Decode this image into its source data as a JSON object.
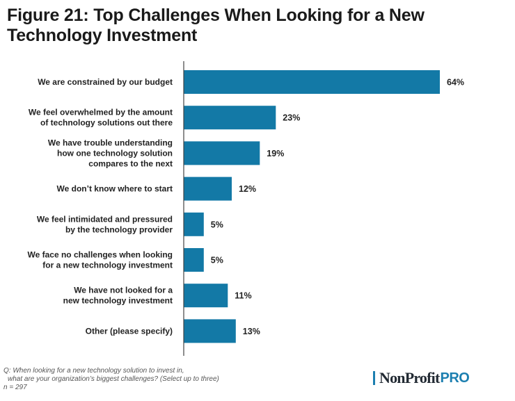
{
  "colors": {
    "bar": "#1379a6",
    "axis": "#444444",
    "text": "#222222",
    "brand_accent": "#1c7fb0"
  },
  "chart_data": {
    "type": "bar",
    "orientation": "horizontal",
    "title": "Figure 21: Top Challenges When Looking for a New Technology Investment",
    "categories": [
      [
        "We are constrained by our budget"
      ],
      [
        "We feel overwhelmed by the amount",
        "of technology solutions out there"
      ],
      [
        "We have trouble understanding",
        "how one technology solution",
        "compares to the next"
      ],
      [
        "We don’t know where to start"
      ],
      [
        "We feel intimidated and pressured",
        "by the technology provider"
      ],
      [
        "We face no challenges when looking",
        "for a new technology investment"
      ],
      [
        "We have not looked for a",
        "new technology investment"
      ],
      [
        "Other (please specify)"
      ]
    ],
    "values": [
      64,
      23,
      19,
      12,
      5,
      5,
      11,
      13
    ],
    "value_labels": [
      "64%",
      "23%",
      "19%",
      "12%",
      "5%",
      "5%",
      "11%",
      "13%"
    ],
    "unit": "%",
    "xlim": [
      0,
      64
    ],
    "grid": false,
    "legend": "none"
  },
  "footnote": {
    "question_line1": "Q: When looking for a new technology solution to invest in,",
    "question_line2": "what are your organization’s biggest challenges? (Select up to three)",
    "sample": "n = 297"
  },
  "logo": {
    "part1": "NonProfit",
    "part2": "PRO"
  }
}
